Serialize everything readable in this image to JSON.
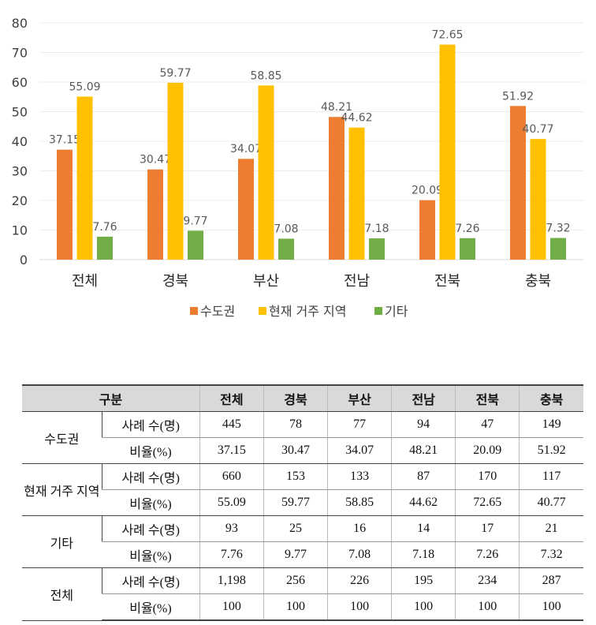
{
  "chart_data": {
    "type": "bar",
    "categories": [
      "전체",
      "경북",
      "부산",
      "전남",
      "전북",
      "충북"
    ],
    "series": [
      {
        "name": "수도권",
        "color": "#ed7d31",
        "values": [
          37.15,
          30.47,
          34.07,
          48.21,
          20.09,
          51.92
        ]
      },
      {
        "name": "현재 거주 지역",
        "color": "#ffc000",
        "values": [
          55.09,
          59.77,
          58.85,
          44.62,
          72.65,
          40.77
        ]
      },
      {
        "name": "기타",
        "color": "#70ad47",
        "values": [
          7.76,
          9.77,
          7.08,
          7.18,
          7.26,
          7.32
        ]
      }
    ],
    "ylim": [
      0,
      80
    ],
    "yticks": [
      0,
      10,
      20,
      30,
      40,
      50,
      60,
      70,
      80
    ],
    "grid": true,
    "legend": "bottom",
    "data_labels": true
  },
  "table": {
    "header": [
      "구분",
      "전체",
      "경북",
      "부산",
      "전남",
      "전북",
      "충북"
    ],
    "groups": [
      {
        "label": "수도권",
        "rows": [
          {
            "label": "사례 수(명)",
            "values": [
              "445",
              "78",
              "77",
              "94",
              "47",
              "149"
            ]
          },
          {
            "label": "비율(%)",
            "values": [
              "37.15",
              "30.47",
              "34.07",
              "48.21",
              "20.09",
              "51.92"
            ]
          }
        ]
      },
      {
        "label": "현재 거주 지역",
        "rows": [
          {
            "label": "사례 수(명)",
            "values": [
              "660",
              "153",
              "133",
              "87",
              "170",
              "117"
            ]
          },
          {
            "label": "비율(%)",
            "values": [
              "55.09",
              "59.77",
              "58.85",
              "44.62",
              "72.65",
              "40.77"
            ]
          }
        ]
      },
      {
        "label": "기타",
        "rows": [
          {
            "label": "사례 수(명)",
            "values": [
              "93",
              "25",
              "16",
              "14",
              "17",
              "21"
            ]
          },
          {
            "label": "비율(%)",
            "values": [
              "7.76",
              "9.77",
              "7.08",
              "7.18",
              "7.26",
              "7.32"
            ]
          }
        ]
      },
      {
        "label": "전체",
        "rows": [
          {
            "label": "사례 수(명)",
            "values": [
              "1,198",
              "256",
              "226",
              "195",
              "234",
              "287"
            ]
          },
          {
            "label": "비율(%)",
            "values": [
              "100",
              "100",
              "100",
              "100",
              "100",
              "100"
            ]
          }
        ]
      }
    ]
  }
}
